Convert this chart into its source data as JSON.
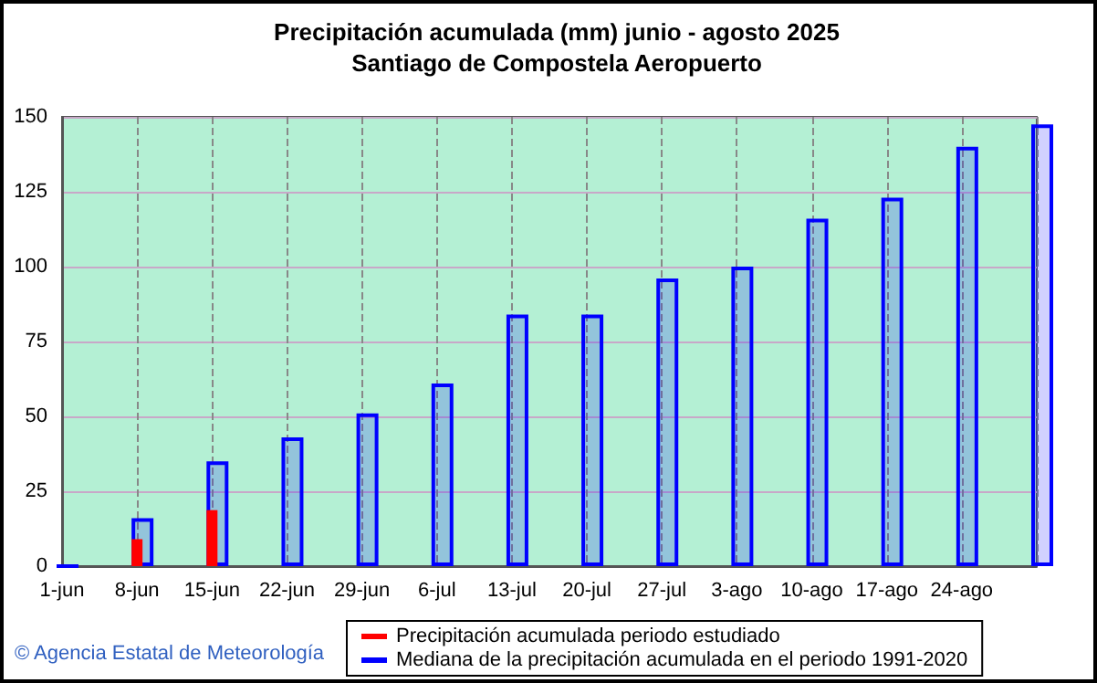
{
  "chart_data": {
    "type": "bar",
    "title": "Precipitación acumulada (mm) junio - agosto 2025",
    "subtitle": "Santiago de Compostela Aeropuerto",
    "categories": [
      "1-jun",
      "8-jun",
      "15-jun",
      "22-jun",
      "29-jun",
      "6-jul",
      "13-jul",
      "20-jul",
      "27-jul",
      "3-ago",
      "10-ago",
      "17-ago",
      "24-ago",
      null
    ],
    "series": [
      {
        "name": "Mediana de la precipitación acumulada en el periodo 1991-2020",
        "color": "#0000ff",
        "values": [
          0,
          16,
          35,
          43,
          51,
          61,
          84,
          84,
          96,
          100,
          116,
          123,
          140,
          147.5
        ]
      },
      {
        "name": "Precipitación acumulada periodo estudiado",
        "color": "#ff0000",
        "values": [
          0,
          9,
          18.7,
          null,
          null,
          null,
          null,
          null,
          null,
          null,
          null,
          null,
          null,
          null
        ]
      }
    ],
    "ylim": [
      0,
      150
    ],
    "yticks": [
      0,
      25,
      50,
      75,
      100,
      125,
      150
    ],
    "grid": true,
    "legend": "bottom",
    "annotations": [
      "© Agencia Estatal de Meteorología"
    ]
  }
}
